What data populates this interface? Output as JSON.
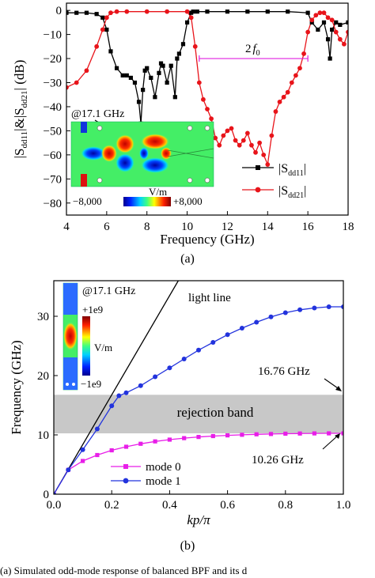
{
  "chart_data": [
    {
      "type": "line",
      "panel_label": "(a)",
      "xlabel": "Frequency (GHz)",
      "ylabel": "|S dd11|&|S dd21| (dB)",
      "ylabel_parts": [
        "|S",
        "dd11",
        "|&|S",
        "dd21",
        "| (dB)"
      ],
      "xlim": [
        4,
        18
      ],
      "ylim": [
        -85,
        3
      ],
      "xticks": [
        "4",
        "6",
        "8",
        "10",
        "12",
        "14",
        "16",
        "18"
      ],
      "yticks": [
        "0",
        "−10",
        "−20",
        "−30",
        "−40",
        "−50",
        "−60",
        "−70",
        "−80"
      ],
      "legend_position": "bottom-right",
      "series": [
        {
          "name": "|S dd11|",
          "name_parts": [
            "|S",
            "dd11",
            "|"
          ],
          "color": "#000000",
          "marker": "square",
          "x": [
            4.0,
            4.5,
            5.0,
            5.5,
            5.8,
            6.0,
            6.2,
            6.5,
            6.8,
            7.0,
            7.2,
            7.4,
            7.6,
            7.7,
            7.8,
            7.9,
            8.0,
            8.2,
            8.4,
            8.6,
            8.7,
            8.8,
            9.0,
            9.2,
            9.4,
            9.5,
            9.6,
            9.8,
            10.0,
            10.2,
            10.3,
            10.5,
            11.0,
            12.0,
            13.0,
            14.0,
            15.0,
            16.0,
            16.2,
            16.5,
            16.8,
            17.0,
            17.1,
            17.2,
            17.4,
            17.6,
            18.0
          ],
          "y": [
            -1,
            -1,
            -1,
            -1.5,
            -3,
            -8,
            -17,
            -24,
            -27,
            -27,
            -28,
            -30,
            -38,
            -47,
            -33,
            -25,
            -24,
            -28,
            -36,
            -26,
            -22,
            -23,
            -30,
            -23,
            -36,
            -20,
            -18,
            -14,
            -5,
            -1,
            -0.5,
            -0.5,
            -0.5,
            -0.5,
            -0.5,
            -0.5,
            -0.5,
            -1,
            -5,
            -8,
            -5,
            -12,
            -20,
            -8,
            -5,
            -6,
            -5
          ]
        },
        {
          "name": "|S dd21|",
          "name_parts": [
            "|S",
            "dd21",
            "|"
          ],
          "color": "#e8141a",
          "marker": "circle",
          "x": [
            4.0,
            4.5,
            5.0,
            5.5,
            5.8,
            6.0,
            6.2,
            6.5,
            7.0,
            8.0,
            9.0,
            10.0,
            10.2,
            10.4,
            10.6,
            10.8,
            11.0,
            11.2,
            11.4,
            11.6,
            11.8,
            12.0,
            12.2,
            12.4,
            12.6,
            12.8,
            13.0,
            13.2,
            13.4,
            13.6,
            13.8,
            14.0,
            14.2,
            14.4,
            14.6,
            14.8,
            15.0,
            15.2,
            15.4,
            15.6,
            15.8,
            16.0,
            16.2,
            16.4,
            16.6,
            16.8,
            17.0,
            17.2,
            17.4,
            17.6,
            17.8,
            18.0
          ],
          "y": [
            -32,
            -30,
            -25,
            -15,
            -8,
            -3,
            -1,
            -0.5,
            -0.5,
            -0.5,
            -0.5,
            -0.5,
            -3,
            -15,
            -30,
            -37,
            -41,
            -45,
            -53,
            -56,
            -52,
            -50,
            -49,
            -54,
            -56,
            -54,
            -51,
            -56,
            -59,
            -55,
            -60,
            -64,
            -52,
            -42,
            -38,
            -36,
            -34,
            -30,
            -27,
            -24,
            -18,
            -9,
            -4,
            -2,
            -1,
            -1,
            -3,
            -4,
            -9,
            -12,
            -14,
            -9
          ]
        }
      ],
      "annotations": {
        "harmonic_label": "2",
        "harmonic_symbol": "f",
        "harmonic_sub": "0",
        "harmonic_x_range": [
          10.6,
          16.0
        ],
        "harmonic_y": -20,
        "harmonic_color": "#e020e0",
        "inset_title": "@17.1 GHz",
        "inset_unit": "V/m",
        "inset_min": "−8,000",
        "inset_max": "+8,000"
      }
    },
    {
      "type": "line",
      "panel_label": "(b)",
      "xlabel": "kp/π",
      "ylabel": "Frequency (GHz)",
      "xlim": [
        0,
        1
      ],
      "ylim": [
        0,
        36
      ],
      "xticks": [
        "0.0",
        "0.2",
        "0.4",
        "0.6",
        "0.8",
        "1.0"
      ],
      "yticks": [
        "0",
        "10",
        "20",
        "30"
      ],
      "legend_position": "bottom-center",
      "series": [
        {
          "name": "mode 0",
          "color": "#e81ee8",
          "marker": "square",
          "x": [
            0.0,
            0.05,
            0.1,
            0.15,
            0.2,
            0.25,
            0.3,
            0.35,
            0.4,
            0.45,
            0.5,
            0.55,
            0.6,
            0.65,
            0.7,
            0.75,
            0.8,
            0.85,
            0.9,
            0.95,
            1.0
          ],
          "y": [
            0,
            4.1,
            5.6,
            6.6,
            7.4,
            8.0,
            8.5,
            8.9,
            9.2,
            9.45,
            9.65,
            9.8,
            9.92,
            10.02,
            10.1,
            10.15,
            10.2,
            10.23,
            10.25,
            10.26,
            10.26
          ]
        },
        {
          "name": "mode 1",
          "color": "#2233dd",
          "marker": "circle",
          "x": [
            0.0,
            0.05,
            0.1,
            0.15,
            0.2,
            0.225,
            0.25,
            0.3,
            0.35,
            0.4,
            0.45,
            0.5,
            0.55,
            0.6,
            0.65,
            0.7,
            0.75,
            0.8,
            0.85,
            0.9,
            0.95,
            1.0
          ],
          "y": [
            0,
            4.1,
            7.5,
            11.0,
            14.9,
            16.6,
            17.1,
            18.3,
            19.8,
            21.3,
            22.8,
            24.3,
            25.6,
            26.9,
            28.0,
            29.0,
            29.9,
            30.6,
            31.1,
            31.4,
            31.6,
            31.6
          ]
        }
      ],
      "light_line": {
        "name": "light line",
        "color": "#000000",
        "x": [
          0.0,
          0.43
        ],
        "y": [
          0,
          36
        ]
      },
      "rejection_band": {
        "label": "rejection band",
        "y_low": 10.26,
        "y_high": 16.76,
        "color": "#c8c8c8"
      },
      "annotations": {
        "upper_edge": "16.76 GHz",
        "lower_edge": "10.26 GHz",
        "inset_title": "@17.1 GHz",
        "inset_unit": "V/m",
        "inset_max": "+1e9",
        "inset_min": "−1e9"
      }
    }
  ],
  "caption": "(a) Simulated odd-mode response of balanced BPF and its d"
}
